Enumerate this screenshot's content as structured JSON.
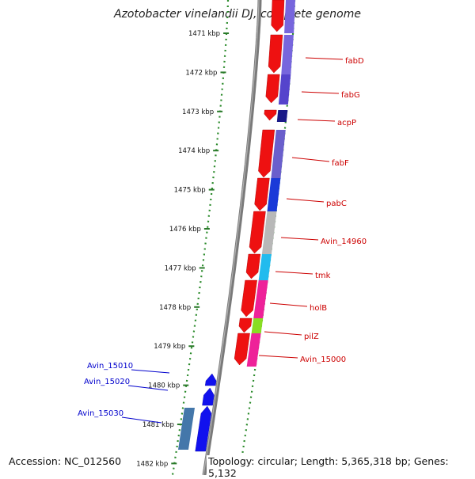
{
  "title": "Azotobacter vinelandii DJ, complete genome",
  "footer": {
    "accession": "Accession: NC_012560",
    "summary": "Topology: circular; Length: 5,365,318 bp; Genes: 5,132"
  },
  "colors": {
    "backbone": "#808080",
    "ruler_dots": "#2a8a2a",
    "forward_label": "#cc0000",
    "reverse_label": "#0000cc"
  },
  "ruler": [
    "1471 kbp",
    "1472 kbp",
    "1473 kbp",
    "1474 kbp",
    "1475 kbp",
    "1476 kbp",
    "1477 kbp",
    "1478 kbp",
    "1479 kbp",
    "1480 kbp",
    "1481 kbp",
    "1482 kbp"
  ],
  "forward_genes": [
    {
      "label": "fabD",
      "color": "#ee1111",
      "cog": "#7766dd"
    },
    {
      "label": "fabG",
      "color": "#ee1111",
      "cog": "#5544cc"
    },
    {
      "label": "acpP",
      "color": "#ee1111",
      "cog": "#1a1a88"
    },
    {
      "label": "fabF",
      "color": "#ee1111",
      "cog": "#6a5fcc"
    },
    {
      "label": "pabC",
      "color": "#ee1111",
      "cog": "#1a3ad8"
    },
    {
      "label": "Avin_14960",
      "color": "#ee1111",
      "cog": "#b8b8b8"
    },
    {
      "label": "tmk",
      "color": "#ee1111",
      "cog": "#22bbee"
    },
    {
      "label": "holB",
      "color": "#ee1111",
      "cog": "#ee2299"
    },
    {
      "label": "pilZ",
      "color": "#ee1111",
      "cog": "#88dd22"
    },
    {
      "label": "Avin_15000",
      "color": "#ee1111",
      "cog": "#ee2299"
    }
  ],
  "reverse_genes": [
    {
      "label": "Avin_15010",
      "color": "#1111ee"
    },
    {
      "label": "Avin_15020",
      "color": "#1111ee"
    },
    {
      "label": "Avin_15030",
      "color": "#1111ee",
      "cog": "#4477aa"
    }
  ]
}
